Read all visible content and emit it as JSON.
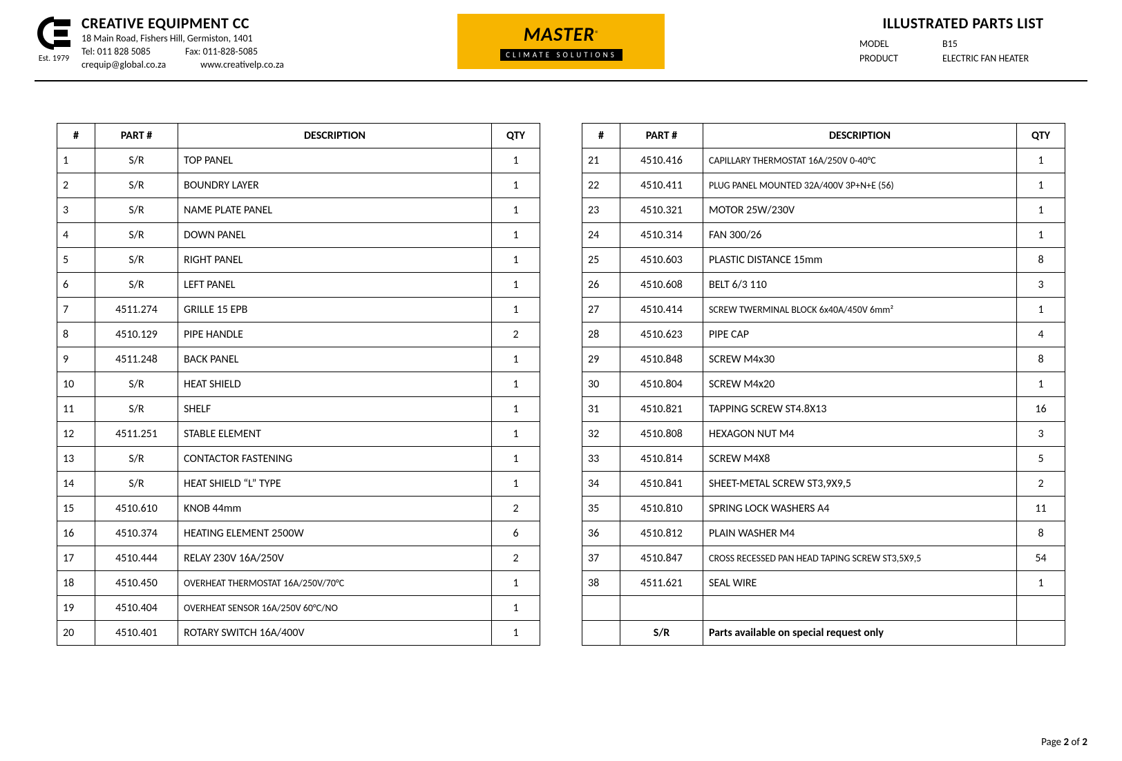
{
  "header": {
    "company_name": "CREATIVE EQUIPMENT CC",
    "address": "18 Main Road, Fishers Hill, Germiston, 1401",
    "tel": "Tel: 011 828 5085",
    "fax": "Fax: 011-828-5085",
    "email": "crequip@global.co.za",
    "web": "www.creativelp.co.za",
    "est": "Est. 1979",
    "center_brand": "MASTER",
    "center_reg": "®",
    "center_sub": "CLIMATE SOLUTIONS",
    "doc_title": "ILLUSTRATED PARTS LIST",
    "model_label": "MODEL",
    "model_value": "B15",
    "product_label": "PRODUCT",
    "product_value": "ELECTRIC FAN HEATER"
  },
  "table_headers": {
    "idx": "#",
    "part": "PART #",
    "desc": "DESCRIPTION",
    "qty": "QTY"
  },
  "table_left": [
    {
      "idx": "1",
      "part": "S/R",
      "desc": "TOP PANEL",
      "qty": "1"
    },
    {
      "idx": "2",
      "part": "S/R",
      "desc": "BOUNDRY LAYER",
      "qty": "1"
    },
    {
      "idx": "3",
      "part": "S/R",
      "desc": "NAME PLATE PANEL",
      "qty": "1"
    },
    {
      "idx": "4",
      "part": "S/R",
      "desc": "DOWN PANEL",
      "qty": "1"
    },
    {
      "idx": "5",
      "part": "S/R",
      "desc": "RIGHT PANEL",
      "qty": "1"
    },
    {
      "idx": "6",
      "part": "S/R",
      "desc": "LEFT PANEL",
      "qty": "1"
    },
    {
      "idx": "7",
      "part": "4511.274",
      "desc": "GRILLE 15 EPB",
      "qty": "1"
    },
    {
      "idx": "8",
      "part": "4510.129",
      "desc": "PIPE HANDLE",
      "qty": "2"
    },
    {
      "idx": "9",
      "part": "4511.248",
      "desc": "BACK PANEL",
      "qty": "1"
    },
    {
      "idx": "10",
      "part": "S/R",
      "desc": "HEAT SHIELD",
      "qty": "1"
    },
    {
      "idx": "11",
      "part": "S/R",
      "desc": "SHELF",
      "qty": "1"
    },
    {
      "idx": "12",
      "part": "4511.251",
      "desc": "STABLE ELEMENT",
      "qty": "1"
    },
    {
      "idx": "13",
      "part": "S/R",
      "desc": "CONTACTOR FASTENING",
      "qty": "1"
    },
    {
      "idx": "14",
      "part": "S/R",
      "desc": "HEAT SHIELD “L” TYPE",
      "qty": "1"
    },
    {
      "idx": "15",
      "part": "4510.610",
      "desc": "KNOB 44mm",
      "qty": "2"
    },
    {
      "idx": "16",
      "part": "4510.374",
      "desc": "HEATING ELEMENT 2500W",
      "qty": "6"
    },
    {
      "idx": "17",
      "part": "4510.444",
      "desc": "RELAY 230V 16A/250V",
      "qty": "2"
    },
    {
      "idx": "18",
      "part": "4510.450",
      "desc": "OVERHEAT THERMOSTAT 16A/250V/70°C",
      "qty": "1",
      "small": true
    },
    {
      "idx": "19",
      "part": "4510.404",
      "desc": "OVERHEAT SENSOR 16A/250V 60°C/NO",
      "qty": "1",
      "small": true
    },
    {
      "idx": "20",
      "part": "4510.401",
      "desc": "ROTARY SWITCH 16A/400V",
      "qty": "1"
    }
  ],
  "table_right": [
    {
      "idx": "21",
      "part": "4510.416",
      "desc": "CAPILLARY THERMOSTAT 16A/250V 0-40°C",
      "qty": "1",
      "small": true
    },
    {
      "idx": "22",
      "part": "4510.411",
      "desc": "PLUG PANEL MOUNTED 32A/400V 3P+N+E (56)",
      "qty": "1",
      "small": true
    },
    {
      "idx": "23",
      "part": "4510.321",
      "desc": "MOTOR 25W/230V",
      "qty": "1"
    },
    {
      "idx": "24",
      "part": "4510.314",
      "desc": "FAN 300/26",
      "qty": "1"
    },
    {
      "idx": "25",
      "part": "4510.603",
      "desc": "PLASTIC DISTANCE 15mm",
      "qty": "8"
    },
    {
      "idx": "26",
      "part": "4510.608",
      "desc": "BELT 6/3 110",
      "qty": "3"
    },
    {
      "idx": "27",
      "part": "4510.414",
      "desc": "SCREW TWERMINAL BLOCK 6x40A/450V 6mm²",
      "qty": "1",
      "small": true
    },
    {
      "idx": "28",
      "part": "4510.623",
      "desc": "PIPE CAP",
      "qty": "4"
    },
    {
      "idx": "29",
      "part": "4510.848",
      "desc": "SCREW M4x30",
      "qty": "8"
    },
    {
      "idx": "30",
      "part": "4510.804",
      "desc": "SCREW M4x20",
      "qty": "1"
    },
    {
      "idx": "31",
      "part": "4510.821",
      "desc": "TAPPING SCREW ST4.8X13",
      "qty": "16"
    },
    {
      "idx": "32",
      "part": "4510.808",
      "desc": "HEXAGON NUT M4",
      "qty": "3"
    },
    {
      "idx": "33",
      "part": "4510.814",
      "desc": "SCREW M4X8",
      "qty": "5"
    },
    {
      "idx": "34",
      "part": "4510.841",
      "desc": "SHEET-METAL SCREW ST3,9X9,5",
      "qty": "2"
    },
    {
      "idx": "35",
      "part": "4510.810",
      "desc": "SPRING LOCK WASHERS A4",
      "qty": "11"
    },
    {
      "idx": "36",
      "part": "4510.812",
      "desc": "PLAIN WASHER M4",
      "qty": "8"
    },
    {
      "idx": "37",
      "part": "4510.847",
      "desc": "CROSS RECESSED PAN HEAD TAPING SCREW ST3,5X9,5",
      "qty": "54",
      "small": true
    },
    {
      "idx": "38",
      "part": "4511.621",
      "desc": "SEAL WIRE",
      "qty": "1"
    }
  ],
  "footer_row": {
    "part": "S/R",
    "desc": "Parts available on special request only"
  },
  "page_footer": {
    "prefix": "Page ",
    "current": "2",
    "of": " of ",
    "total": "2"
  },
  "colors": {
    "accent_yellow": "#f7b500",
    "text": "#000000",
    "background": "#ffffff"
  }
}
